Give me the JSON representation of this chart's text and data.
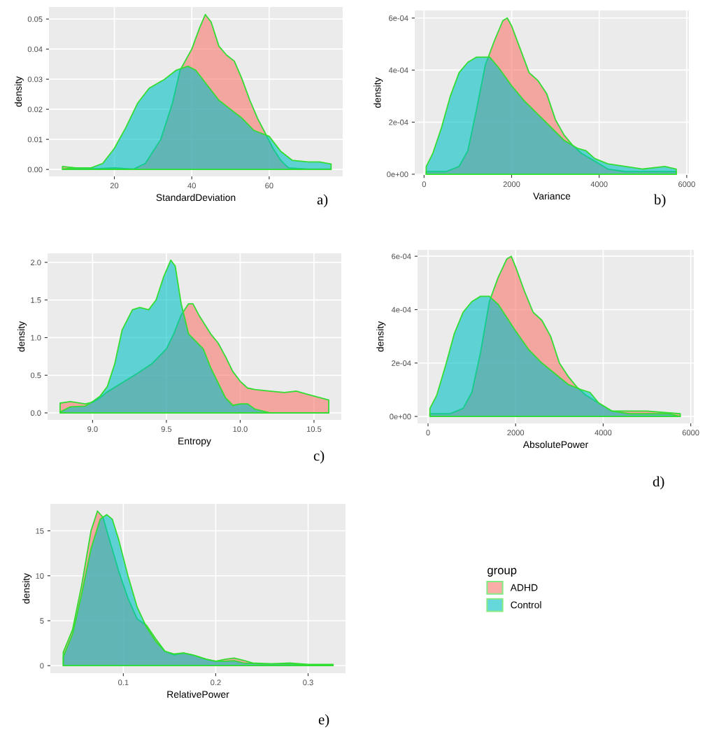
{
  "chart_data": [
    {
      "type": "area",
      "xlabel": "StandardDeviation",
      "ylabel": "density",
      "annotations": [
        "a)"
      ],
      "grid": true,
      "legend": false,
      "xlim": [
        3.1,
        79
      ],
      "xticks": [
        20,
        40,
        60
      ],
      "ylim": [
        -0.0023,
        0.054
      ],
      "yticks": [
        {
          "value": 0,
          "label": "0.00"
        },
        {
          "value": 0.01,
          "label": "0.01"
        },
        {
          "value": 0.02,
          "label": "0.02"
        },
        {
          "value": 0.03,
          "label": "0.03"
        },
        {
          "value": 0.04,
          "label": "0.04"
        },
        {
          "value": 0.05,
          "label": "0.05"
        }
      ],
      "series": [
        {
          "color": "#f8766d",
          "x": [
            6.6,
            10,
            15,
            20,
            25,
            28,
            32,
            35,
            37,
            40,
            42,
            43.5,
            45,
            47,
            49,
            51,
            53,
            55,
            57,
            59,
            61,
            63,
            65,
            70,
            76
          ],
          "values": [
            0.001,
            0.0005,
            0.0002,
            0.0005,
            0.0001,
            0.002,
            0.01,
            0.022,
            0.033,
            0.04,
            0.047,
            0.0515,
            0.049,
            0.041,
            0.038,
            0.036,
            0.03,
            0.023,
            0.017,
            0.012,
            0.007,
            0.003,
            0.0005,
            0.0001,
            0.0001
          ]
        },
        {
          "color": "#00bfc4",
          "x": [
            6.6,
            10,
            14,
            17,
            20,
            23,
            26,
            29,
            33,
            36,
            39,
            41,
            44,
            47,
            50,
            53,
            56,
            60,
            63,
            66,
            70,
            73,
            76
          ],
          "values": [
            0.0001,
            0.0005,
            0.0005,
            0.002,
            0.007,
            0.014,
            0.022,
            0.027,
            0.03,
            0.033,
            0.0343,
            0.033,
            0.028,
            0.023,
            0.02,
            0.017,
            0.013,
            0.011,
            0.006,
            0.003,
            0.0025,
            0.0025,
            0.0018
          ]
        }
      ]
    },
    {
      "type": "area",
      "xlabel": "Variance",
      "ylabel": "density",
      "annotations": [
        "b)"
      ],
      "grid": true,
      "legend": false,
      "xlim": [
        -213,
        6050
      ],
      "xticks": [
        0,
        2000,
        4000,
        6000
      ],
      "ylim": [
        -2.8e-06,
        0.000629
      ],
      "yticks": [
        {
          "value": 0,
          "label": "0e+00"
        },
        {
          "value": 0.0002,
          "label": "2e-04"
        },
        {
          "value": 0.0004,
          "label": "4e-04"
        },
        {
          "value": 0.0006,
          "label": "6e-04"
        }
      ],
      "series": [
        {
          "color": "#f8766d",
          "x": [
            50,
            500,
            800,
            1000,
            1200,
            1400,
            1600,
            1800,
            1900,
            2000,
            2200,
            2400,
            2600,
            2800,
            3000,
            3200,
            3400,
            3600,
            3800,
            4000,
            4200,
            4600,
            5000,
            5760
          ],
          "values": [
            1e-05,
            1e-05,
            3e-05,
            9e-05,
            0.00025,
            0.00042,
            0.00051,
            0.00059,
            0.0006,
            0.00057,
            0.00048,
            0.00039,
            0.00036,
            0.00031,
            0.00021,
            0.00015,
            0.00011,
            8e-05,
            6e-05,
            4e-05,
            2e-05,
            1e-05,
            1e-05,
            1e-05
          ]
        },
        {
          "color": "#00bfc4",
          "x": [
            50,
            200,
            400,
            600,
            800,
            1000,
            1200,
            1500,
            1700,
            2000,
            2300,
            2600,
            2900,
            3200,
            3500,
            3700,
            3900,
            4200,
            4600,
            5000,
            5500,
            5760
          ],
          "values": [
            3e-05,
            8e-05,
            0.00018,
            0.0003,
            0.00039,
            0.00043,
            0.00045,
            0.00045,
            0.00041,
            0.00034,
            0.00028,
            0.00023,
            0.00018,
            0.00013,
            0.0001,
            9e-05,
            6e-05,
            4e-05,
            3e-05,
            2e-05,
            3e-05,
            2e-05
          ]
        }
      ]
    },
    {
      "type": "area",
      "xlabel": "Entropy",
      "ylabel": "density",
      "annotations": [
        "c)"
      ],
      "grid": true,
      "legend": false,
      "xlim": [
        8.695,
        10.685
      ],
      "xticks": [
        {
          "value": 9.0,
          "label": "9.0"
        },
        {
          "value": 9.5,
          "label": "9.5"
        },
        {
          "value": 10.0,
          "label": "10.0"
        },
        {
          "value": 10.5,
          "label": "10.5"
        }
      ],
      "ylim": [
        -0.093,
        2.12
      ],
      "yticks": [
        {
          "value": 0,
          "label": "0.0"
        },
        {
          "value": 0.5,
          "label": "0.5"
        },
        {
          "value": 1.0,
          "label": "1.0"
        },
        {
          "value": 1.5,
          "label": "1.5"
        },
        {
          "value": 2.0,
          "label": "2.0"
        }
      ],
      "series": [
        {
          "color": "#f8766d",
          "x": [
            8.78,
            8.85,
            8.95,
            9.0,
            9.05,
            9.1,
            9.2,
            9.3,
            9.4,
            9.5,
            9.55,
            9.6,
            9.65,
            9.68,
            9.72,
            9.8,
            9.85,
            9.9,
            9.95,
            10.0,
            10.05,
            10.1,
            10.2,
            10.3,
            10.38,
            10.45,
            10.6
          ],
          "values": [
            0.13,
            0.15,
            0.12,
            0.14,
            0.2,
            0.28,
            0.4,
            0.52,
            0.65,
            0.85,
            1.05,
            1.3,
            1.45,
            1.45,
            1.3,
            1.05,
            0.93,
            0.75,
            0.55,
            0.42,
            0.33,
            0.31,
            0.29,
            0.27,
            0.29,
            0.25,
            0.17
          ]
        },
        {
          "color": "#00bfc4",
          "x": [
            8.78,
            8.85,
            8.95,
            9.0,
            9.05,
            9.1,
            9.15,
            9.2,
            9.27,
            9.32,
            9.38,
            9.43,
            9.48,
            9.53,
            9.56,
            9.6,
            9.65,
            9.7,
            9.75,
            9.8,
            9.85,
            9.9,
            9.95,
            10.0,
            10.05,
            10.1,
            10.2,
            10.6
          ],
          "values": [
            0.01,
            0.08,
            0.09,
            0.15,
            0.22,
            0.35,
            0.65,
            1.1,
            1.37,
            1.4,
            1.37,
            1.5,
            1.8,
            2.03,
            1.95,
            1.45,
            1.05,
            0.95,
            0.85,
            0.6,
            0.4,
            0.2,
            0.1,
            0.12,
            0.12,
            0.05,
            0.0,
            0.0
          ]
        }
      ]
    },
    {
      "type": "area",
      "xlabel": "AbsolutePower",
      "ylabel": "density",
      "annotations": [
        "d)"
      ],
      "grid": true,
      "legend": false,
      "xlim": [
        -240,
        6070
      ],
      "xticks": [
        0,
        2000,
        4000,
        6000
      ],
      "ylim": [
        -2.6e-05,
        0.000624
      ],
      "yticks": [
        {
          "value": 0,
          "label": "0e+00"
        },
        {
          "value": 0.0002,
          "label": "2e-04"
        },
        {
          "value": 0.0004,
          "label": "4e-04"
        },
        {
          "value": 0.0006,
          "label": "6e-04"
        }
      ],
      "series": [
        {
          "color": "#f8766d",
          "x": [
            43,
            500,
            800,
            1000,
            1200,
            1400,
            1600,
            1800,
            1900,
            2000,
            2200,
            2400,
            2600,
            2800,
            3000,
            3200,
            3400,
            3600,
            3800,
            4000,
            4200,
            4600,
            5000,
            5760
          ],
          "values": [
            1e-05,
            1e-05,
            3e-05,
            9e-05,
            0.00024,
            0.00043,
            0.00052,
            0.00059,
            0.0006,
            0.00056,
            0.00047,
            0.00039,
            0.00036,
            0.0003,
            0.0002,
            0.00015,
            0.00011,
            8e-05,
            6e-05,
            4e-05,
            2e-05,
            2e-05,
            2e-05,
            1e-05
          ]
        },
        {
          "color": "#00bfc4",
          "x": [
            43,
            200,
            400,
            600,
            800,
            1000,
            1200,
            1400,
            1600,
            2000,
            2300,
            2600,
            2900,
            3200,
            3500,
            3700,
            3900,
            4200,
            4600,
            5000,
            5500,
            5760
          ],
          "values": [
            3e-05,
            8e-05,
            0.00019,
            0.00031,
            0.00039,
            0.00043,
            0.00045,
            0.00045,
            0.00042,
            0.00032,
            0.00025,
            0.0002,
            0.00016,
            0.00012,
            0.0001,
            9e-05,
            5e-05,
            2e-05,
            1e-05,
            1e-05,
            1e-05,
            0.0
          ]
        }
      ]
    },
    {
      "type": "area",
      "xlabel": "RelativePower",
      "ylabel": "density",
      "annotations": [
        "e)"
      ],
      "grid": true,
      "legend": "right",
      "legend_title": "group",
      "xlim": [
        0.021,
        0.3405
      ],
      "xticks": [
        0.1,
        0.2,
        0.3
      ],
      "ylim": [
        -0.84,
        18.0
      ],
      "yticks": [
        0,
        5,
        10,
        15
      ],
      "series": [
        {
          "name": "ADHD",
          "color": "#f8766d",
          "x": [
            0.035,
            0.045,
            0.055,
            0.065,
            0.072,
            0.078,
            0.085,
            0.095,
            0.105,
            0.115,
            0.125,
            0.135,
            0.145,
            0.155,
            0.165,
            0.175,
            0.19,
            0.2,
            0.21,
            0.22,
            0.23,
            0.24,
            0.26,
            0.28,
            0.3,
            0.327
          ],
          "values": [
            1.5,
            4,
            9,
            15,
            17.2,
            16.5,
            14,
            10.5,
            7.5,
            5.2,
            4.5,
            3.0,
            1.6,
            1.2,
            1.4,
            1.2,
            0.7,
            0.5,
            0.7,
            0.85,
            0.6,
            0.3,
            0.2,
            0.3,
            0.15,
            0.15
          ]
        },
        {
          "name": "Control",
          "color": "#00bfc4",
          "x": [
            0.035,
            0.045,
            0.055,
            0.065,
            0.075,
            0.082,
            0.088,
            0.095,
            0.105,
            0.115,
            0.125,
            0.135,
            0.145,
            0.155,
            0.165,
            0.175,
            0.19,
            0.2,
            0.21,
            0.22,
            0.23,
            0.25,
            0.28,
            0.3,
            0.327
          ],
          "values": [
            1.0,
            3.5,
            8,
            13,
            16.3,
            16.8,
            16.3,
            14,
            10,
            6.5,
            4.3,
            2.7,
            1.6,
            1.3,
            1.4,
            1.2,
            0.7,
            0.5,
            0.5,
            0.55,
            0.3,
            0.2,
            0.2,
            0.1,
            0.1
          ]
        }
      ]
    }
  ]
}
